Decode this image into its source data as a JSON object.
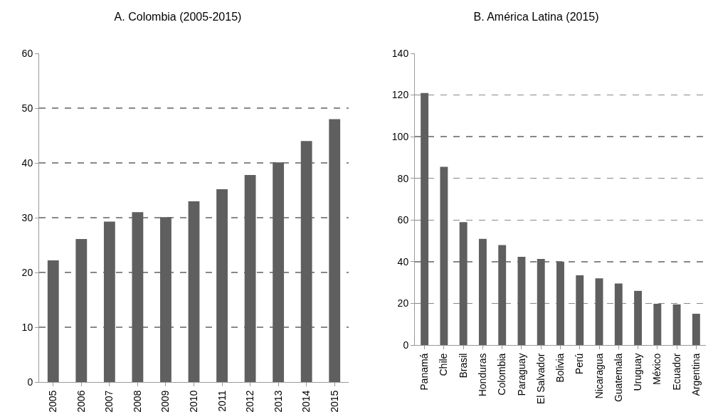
{
  "chart_data": [
    {
      "type": "bar",
      "title": "A. Colombia (2005-2015)",
      "categories": [
        "2005",
        "2006",
        "2007",
        "2008",
        "2009",
        "2010",
        "2011",
        "2012",
        "2013",
        "2014",
        "2015"
      ],
      "values": [
        22.2,
        26.1,
        29.3,
        31,
        30.1,
        33,
        35.2,
        37.8,
        40.1,
        44,
        48
      ],
      "color": "#5f5f5f",
      "ylim": [
        0,
        60
      ],
      "yticks": [
        0,
        10,
        20,
        30,
        40,
        50,
        60
      ],
      "grid": "y",
      "line_style": "dashed"
    },
    {
      "type": "bar",
      "title": "B. América Latina (2015)",
      "categories": [
        "Panamá",
        "Chile",
        "Brasil",
        "Honduras",
        "Colombia",
        "Paraguay",
        "El Salvador",
        "Bolivia",
        "Perú",
        "Nicaragua",
        "Guatemala",
        "Uruguay",
        "México",
        "Ecuador",
        "Argentina"
      ],
      "values": [
        121,
        85.5,
        59,
        51,
        48,
        42.3,
        41.3,
        40,
        33.5,
        32,
        29.5,
        26,
        19.8,
        19.5,
        15
      ],
      "color": "#5f5f5f",
      "ylim": [
        0,
        140
      ],
      "yticks": [
        0,
        20,
        40,
        60,
        80,
        100,
        120,
        140
      ],
      "grid": "y",
      "line_style": "dashed"
    }
  ]
}
